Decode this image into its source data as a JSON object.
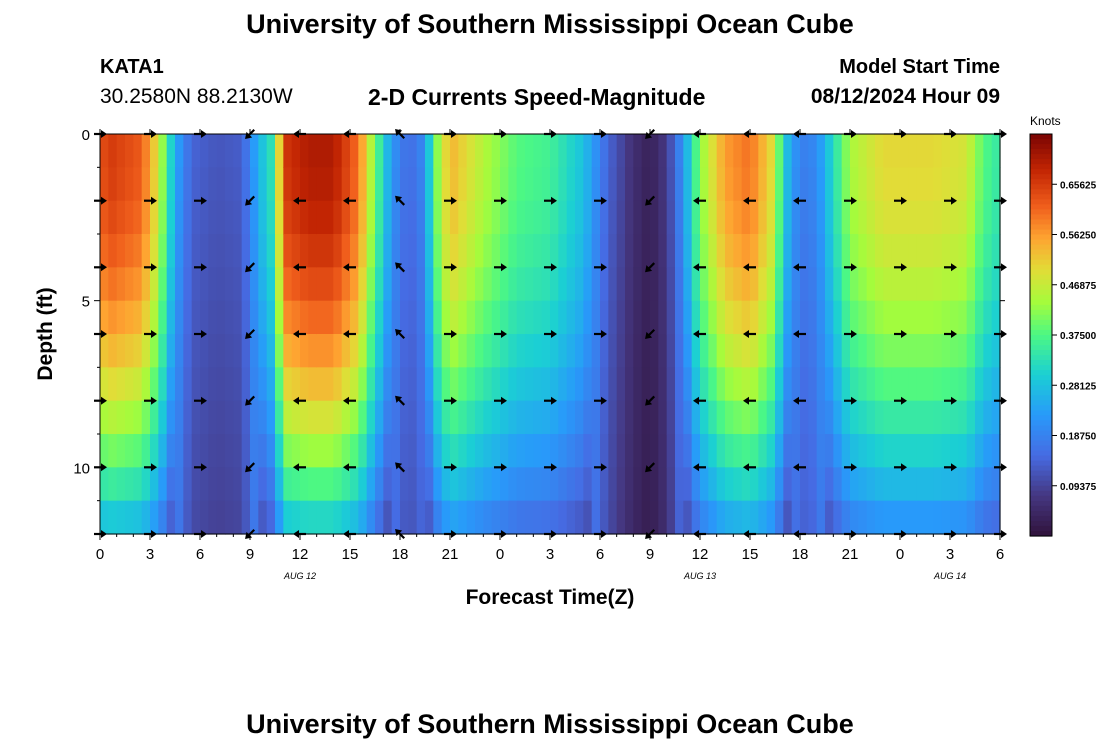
{
  "header": {
    "title": "University of Southern Mississippi Ocean Cube",
    "station_id": "KATA1",
    "station_coords": "30.2580N  88.2130W",
    "subtitle": "2-D Currents Speed-Magnitude",
    "model_start_label": "Model Start Time",
    "model_start_value": "08/12/2024 Hour 09"
  },
  "footer": {
    "title": "University of Southern Mississippi Ocean Cube"
  },
  "chart_data": {
    "type": "heatmap",
    "title": "2-D Currents Speed-Magnitude",
    "xlabel": "Forecast Time(Z)",
    "ylabel": "Depth (ft)",
    "x_tick_labels": [
      "0",
      "3",
      "6",
      "9",
      "12",
      "15",
      "18",
      "21",
      "0",
      "3",
      "6",
      "9",
      "12",
      "15",
      "18",
      "21",
      "0",
      "3",
      "6"
    ],
    "x_hours_from_aug12_00z": [
      0,
      3,
      6,
      9,
      12,
      15,
      18,
      21,
      24,
      27,
      30,
      33,
      36,
      39,
      42,
      45,
      48,
      51,
      54
    ],
    "date_labels": [
      {
        "label": "AUG 12",
        "hour": 12
      },
      {
        "label": "AUG 13",
        "hour": 36
      },
      {
        "label": "AUG 14",
        "hour": 51
      }
    ],
    "y_ticks": [
      0,
      5,
      10
    ],
    "ylim": [
      0,
      12
    ],
    "xlim": [
      0,
      54
    ],
    "depth_rows_ft": [
      0.5,
      1.5,
      2.5,
      3.5,
      4.5,
      5.5,
      6.5,
      7.5,
      8.5,
      9.5,
      10.5,
      11.5
    ],
    "colorbar": {
      "label": "Knots",
      "min": 0.0,
      "max": 0.75,
      "ticks": [
        "0.09375",
        "0.18750",
        "0.28125",
        "0.37500",
        "0.46875",
        "0.56250",
        "0.65625"
      ],
      "tick_values": [
        0.09375,
        0.1875,
        0.28125,
        0.375,
        0.46875,
        0.5625,
        0.65625
      ]
    },
    "speed_profile_knots": [
      [
        0,
        0.62
      ],
      [
        0.5,
        0.66
      ],
      [
        2.5,
        0.62
      ],
      [
        3.5,
        0.48
      ],
      [
        4.5,
        0.25
      ],
      [
        5.5,
        0.14
      ],
      [
        7,
        0.12
      ],
      [
        8.5,
        0.13
      ],
      [
        9.5,
        0.26
      ],
      [
        10.5,
        0.35
      ],
      [
        11,
        0.66
      ],
      [
        12.5,
        0.7
      ],
      [
        14,
        0.7
      ],
      [
        15.5,
        0.6
      ],
      [
        16.5,
        0.4
      ],
      [
        17.5,
        0.22
      ],
      [
        18.5,
        0.15
      ],
      [
        19.5,
        0.2
      ],
      [
        20,
        0.38
      ],
      [
        21,
        0.54
      ],
      [
        23,
        0.45
      ],
      [
        25,
        0.38
      ],
      [
        27,
        0.36
      ],
      [
        29,
        0.28
      ],
      [
        30.5,
        0.14
      ],
      [
        32,
        0.06
      ],
      [
        33,
        0.03
      ],
      [
        34,
        0.08
      ],
      [
        35,
        0.22
      ],
      [
        36,
        0.42
      ],
      [
        37.5,
        0.56
      ],
      [
        39,
        0.6
      ],
      [
        40.5,
        0.48
      ],
      [
        41,
        0.3
      ],
      [
        42,
        0.18
      ],
      [
        43,
        0.2
      ],
      [
        44,
        0.32
      ],
      [
        45,
        0.44
      ],
      [
        47,
        0.5
      ],
      [
        50,
        0.5
      ],
      [
        52,
        0.48
      ],
      [
        53,
        0.38
      ],
      [
        54,
        0.34
      ]
    ],
    "arrows": {
      "times": [
        0,
        3,
        6,
        9,
        12,
        15,
        18,
        21,
        24,
        27,
        30,
        33,
        36,
        39,
        42,
        45,
        48,
        51,
        54
      ],
      "depths_ft": [
        0,
        2,
        4,
        6,
        8,
        10,
        12
      ],
      "direction_by_time": [
        "E",
        "E",
        "E",
        "SW",
        "W",
        "W",
        "NW",
        "E",
        "E",
        "E",
        "E",
        "SW",
        "W",
        "W",
        "W",
        "E",
        "E",
        "E",
        "E"
      ]
    }
  }
}
